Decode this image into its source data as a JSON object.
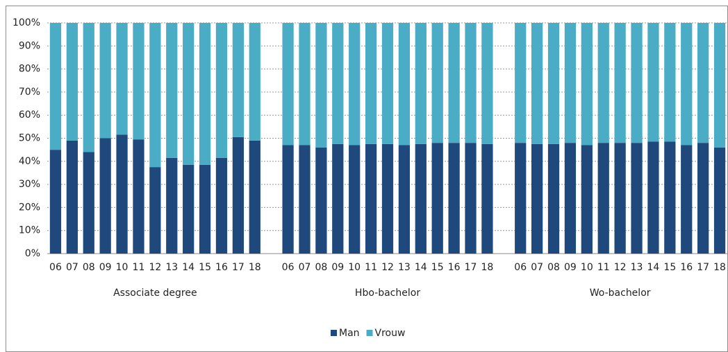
{
  "chart_data": {
    "type": "stacked_bar",
    "groups": [
      {
        "name": "Associate degree",
        "categories": [
          "06",
          "07",
          "08",
          "09",
          "10",
          "11",
          "12",
          "13",
          "14",
          "15",
          "16",
          "17",
          "18"
        ]
      },
      {
        "name": "Hbo-bachelor",
        "categories": [
          "06",
          "07",
          "08",
          "09",
          "10",
          "11",
          "12",
          "13",
          "14",
          "15",
          "16",
          "17",
          "18"
        ]
      },
      {
        "name": "Wo-bachelor",
        "categories": [
          "06",
          "07",
          "08",
          "09",
          "10",
          "11",
          "12",
          "13",
          "14",
          "15",
          "16",
          "17",
          "18"
        ]
      }
    ],
    "series": [
      {
        "name": "Man",
        "color": "#1f497d",
        "values": [
          [
            45,
            49,
            44,
            50,
            51.5,
            49.5,
            37.5,
            41.5,
            38.5,
            38.5,
            41.5,
            50.5,
            49
          ],
          [
            47,
            47,
            46,
            47.5,
            47,
            47.5,
            47.5,
            47,
            47.5,
            48,
            48,
            48,
            47.5
          ],
          [
            48,
            47.5,
            47.5,
            48,
            47,
            48,
            48,
            48,
            48.5,
            48.5,
            47,
            48,
            46
          ]
        ]
      },
      {
        "name": "Vrouw",
        "color": "#4bacc6",
        "values": [
          [
            55,
            51,
            56,
            50,
            48.5,
            50.5,
            62.5,
            58.5,
            61.5,
            61.5,
            58.5,
            49.5,
            51
          ],
          [
            53,
            53,
            54,
            52.5,
            53,
            52.5,
            52.5,
            53,
            52.5,
            52,
            52,
            52,
            52.5
          ],
          [
            52,
            52.5,
            52.5,
            52,
            53,
            52,
            52,
            52,
            51.5,
            51.5,
            53,
            52,
            54
          ]
        ]
      }
    ],
    "ylim": [
      0,
      100
    ],
    "yticks": [
      {
        "value": 0,
        "label": "0%"
      },
      {
        "value": 10,
        "label": "10%"
      },
      {
        "value": 20,
        "label": "20%"
      },
      {
        "value": 30,
        "label": "30%"
      },
      {
        "value": 40,
        "label": "40%"
      },
      {
        "value": 50,
        "label": "50%"
      },
      {
        "value": 60,
        "label": "60%"
      },
      {
        "value": 70,
        "label": "70%"
      },
      {
        "value": 80,
        "label": "80%"
      },
      {
        "value": 90,
        "label": "90%"
      },
      {
        "value": 100,
        "label": "100%"
      }
    ],
    "grid": true,
    "legend": "bottom"
  }
}
